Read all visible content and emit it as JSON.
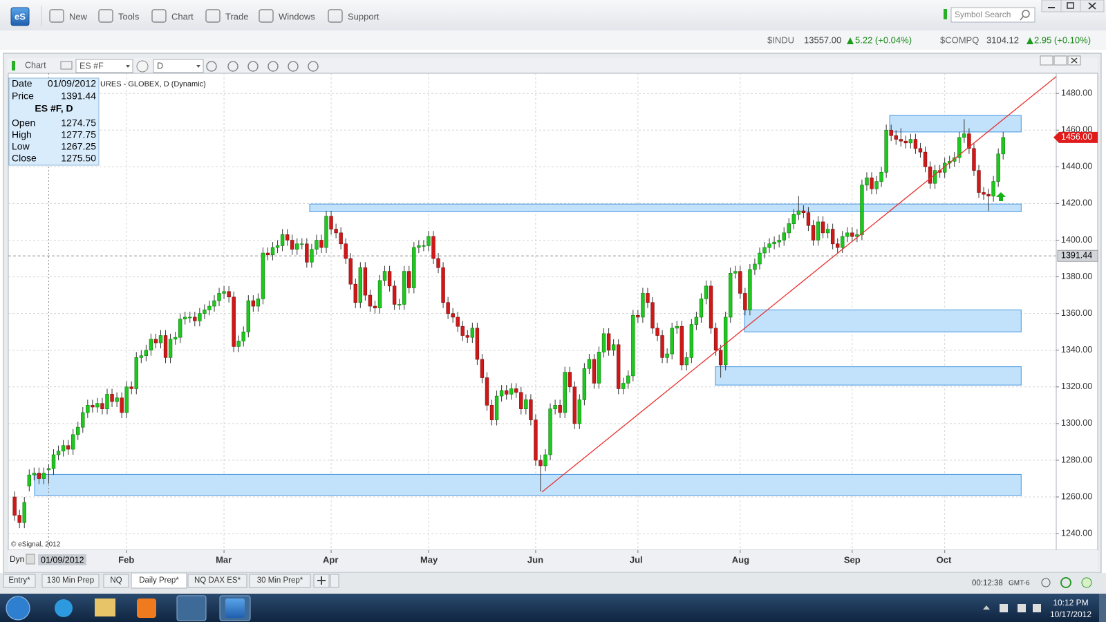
{
  "app": {
    "logo": "eS",
    "menu": [
      "New",
      "Tools",
      "Chart",
      "Trade",
      "Windows",
      "Support"
    ],
    "search_placeholder": "Symbol Search"
  },
  "tickers": [
    {
      "symbol": "$INDU",
      "last": "13557.00",
      "change": "5.22 (+0.04%)"
    },
    {
      "symbol": "$COMPQ",
      "last": "3104.12",
      "change": "2.95 (+0.10%)"
    }
  ],
  "chart_window": {
    "title": "Chart",
    "symbol": "ES #F",
    "interval": "D",
    "legend": "URES - GLOBEX, D (Dynamic)",
    "copyright": "© eSignal, 2012",
    "mode": "Dyn"
  },
  "data_box": {
    "date_label": "Date",
    "date": "01/09/2012",
    "price_label": "Price",
    "price": "1391.44",
    "header": "ES #F, D",
    "rows": [
      [
        "Open",
        "1274.75"
      ],
      [
        "High",
        "1277.75"
      ],
      [
        "Low",
        "1267.25"
      ],
      [
        "Close",
        "1275.50"
      ]
    ]
  },
  "tabs": [
    "Entry*",
    "130 Min Prep",
    "NQ",
    "Daily Prep*",
    "NQ DAX ES*",
    "30 Min Prep*"
  ],
  "status": {
    "timer": "00:12:38",
    "timezone": "GMT-6"
  },
  "taskbar": {
    "time": "10:12 PM",
    "date": "10/17/2012"
  },
  "chart_data": {
    "type": "candlestick",
    "up_color": "#1ec81e",
    "down_color": "#d01818",
    "grid": true,
    "xlim": [
      -1.3,
      213.9
    ],
    "ylim": [
      1231,
      1491
    ],
    "xticks": [
      {
        "value": 23,
        "label": "Feb"
      },
      {
        "value": 43,
        "label": "Mar"
      },
      {
        "value": 65,
        "label": "Apr"
      },
      {
        "value": 85,
        "label": "May"
      },
      {
        "value": 107,
        "label": "Jun"
      },
      {
        "value": 128,
        "label": "Jul"
      },
      {
        "value": 149,
        "label": "Aug"
      },
      {
        "value": 172,
        "label": "Sep"
      },
      {
        "value": 191,
        "label": "Oct"
      }
    ],
    "yticks": [
      {
        "value": 1240,
        "label": "1240.00"
      },
      {
        "value": 1260,
        "label": "1260.00"
      },
      {
        "value": 1280,
        "label": "1280.00"
      },
      {
        "value": 1300,
        "label": "1300.00"
      },
      {
        "value": 1320,
        "label": "1320.00"
      },
      {
        "value": 1340,
        "label": "1340.00"
      },
      {
        "value": 1360,
        "label": "1360.00"
      },
      {
        "value": 1380,
        "label": "1380.00"
      },
      {
        "value": 1400,
        "label": "1400.00"
      },
      {
        "value": 1420,
        "label": "1420.00"
      },
      {
        "value": 1440,
        "label": "1440.00"
      },
      {
        "value": 1460,
        "label": "1460.00"
      },
      {
        "value": 1480,
        "label": "1480.00"
      }
    ],
    "open": [
      1260,
      1250,
      1246,
      1266,
      1272,
      1273,
      1270,
      1274.75,
      1275.5,
      1283,
      1285,
      1288,
      1286,
      1294,
      1298,
      1306,
      1310,
      1309,
      1311,
      1308,
      1316,
      1312,
      1314,
      1306,
      1320,
      1319,
      1336,
      1337,
      1340,
      1346,
      1344,
      1348,
      1336,
      1346,
      1347,
      1357,
      1358,
      1358,
      1356,
      1360,
      1362,
      1364,
      1367,
      1371,
      1372,
      1369,
      1342,
      1345,
      1350,
      1367,
      1364,
      1368,
      1393,
      1392,
      1396,
      1397,
      1403,
      1400,
      1395,
      1398,
      1398,
      1388,
      1395,
      1400,
      1396,
      1413,
      1406,
      1404,
      1398,
      1390,
      1376,
      1366,
      1385,
      1370,
      1364,
      1363,
      1378,
      1383,
      1375,
      1365,
      1365,
      1383,
      1374,
      1396,
      1397,
      1397,
      1402,
      1390,
      1385,
      1366,
      1360,
      1358,
      1353,
      1348,
      1347,
      1352,
      1335,
      1325,
      1310,
      1302,
      1315,
      1318,
      1316,
      1319,
      1317,
      1308,
      1313,
      1302,
      1280,
      1277,
      1283,
      1308,
      1310,
      1306,
      1328,
      1320,
      1300,
      1313,
      1330,
      1335,
      1322,
      1339,
      1349,
      1340,
      1343,
      1319,
      1322,
      1326,
      1359,
      1358,
      1371,
      1366,
      1352,
      1348,
      1336,
      1338,
      1352,
      1353,
      1332,
      1336,
      1354,
      1358,
      1368,
      1375,
      1352,
      1340,
      1332,
      1358,
      1382,
      1383,
      1371,
      1362,
      1384,
      1387,
      1393,
      1396,
      1398,
      1399,
      1400,
      1404,
      1409,
      1414,
      1416,
      1415,
      1408,
      1400,
      1410,
      1404,
      1406,
      1398,
      1396,
      1402,
      1404,
      1402,
      1403,
      1430,
      1434,
      1428,
      1432,
      1437,
      1460,
      1457,
      1455,
      1454,
      1453,
      1455,
      1450,
      1448,
      1440,
      1431,
      1438,
      1437,
      1442,
      1443,
      1445,
      1456,
      1458,
      1450,
      1438,
      1426,
      1425,
      1424,
      1432,
      1447
    ],
    "high": [
      1263,
      1253,
      1260,
      1275,
      1276,
      1276,
      1276,
      1277.75,
      1286,
      1288,
      1291,
      1291,
      1297,
      1301,
      1309,
      1313,
      1313,
      1314,
      1314,
      1319,
      1319,
      1317,
      1317,
      1323,
      1323,
      1339,
      1340,
      1343,
      1349,
      1349,
      1351,
      1351,
      1349,
      1350,
      1360,
      1361,
      1361,
      1361,
      1363,
      1365,
      1367,
      1370,
      1374,
      1375,
      1375,
      1372,
      1348,
      1353,
      1370,
      1370,
      1371,
      1396,
      1396,
      1399,
      1400,
      1406,
      1406,
      1403,
      1401,
      1401,
      1401,
      1398,
      1403,
      1403,
      1416,
      1416,
      1409,
      1407,
      1401,
      1393,
      1379,
      1388,
      1388,
      1373,
      1367,
      1381,
      1386,
      1386,
      1378,
      1368,
      1386,
      1386,
      1399,
      1400,
      1400,
      1405,
      1405,
      1393,
      1388,
      1369,
      1363,
      1361,
      1356,
      1351,
      1355,
      1355,
      1338,
      1328,
      1313,
      1318,
      1321,
      1321,
      1322,
      1322,
      1320,
      1316,
      1316,
      1305,
      1283,
      1286,
      1311,
      1313,
      1313,
      1331,
      1331,
      1323,
      1316,
      1333,
      1338,
      1338,
      1342,
      1352,
      1352,
      1346,
      1346,
      1325,
      1329,
      1362,
      1362,
      1374,
      1374,
      1369,
      1355,
      1351,
      1341,
      1355,
      1356,
      1356,
      1339,
      1357,
      1361,
      1371,
      1378,
      1378,
      1355,
      1343,
      1361,
      1385,
      1386,
      1386,
      1374,
      1387,
      1390,
      1396,
      1399,
      1401,
      1402,
      1403,
      1407,
      1412,
      1417,
      1424,
      1419,
      1418,
      1411,
      1413,
      1413,
      1409,
      1409,
      1401,
      1405,
      1407,
      1407,
      1406,
      1433,
      1437,
      1437,
      1435,
      1440,
      1463,
      1463,
      1460,
      1461,
      1457,
      1458,
      1458,
      1453,
      1451,
      1443,
      1441,
      1441,
      1445,
      1446,
      1448,
      1459,
      1466,
      1461,
      1453,
      1441,
      1429,
      1428,
      1435,
      1450,
      1459
    ],
    "low": [
      1247,
      1243,
      1243,
      1263,
      1269,
      1267,
      1267,
      1267.25,
      1272,
      1280,
      1282,
      1283,
      1283,
      1291,
      1295,
      1303,
      1306,
      1306,
      1305,
      1305,
      1309,
      1309,
      1303,
      1303,
      1316,
      1316,
      1333,
      1334,
      1337,
      1341,
      1341,
      1333,
      1333,
      1343,
      1344,
      1354,
      1355,
      1353,
      1353,
      1357,
      1359,
      1361,
      1364,
      1368,
      1366,
      1339,
      1339,
      1342,
      1347,
      1361,
      1361,
      1365,
      1389,
      1389,
      1393,
      1394,
      1397,
      1392,
      1392,
      1395,
      1385,
      1385,
      1392,
      1393,
      1393,
      1403,
      1401,
      1395,
      1387,
      1373,
      1363,
      1363,
      1367,
      1361,
      1360,
      1360,
      1375,
      1372,
      1362,
      1362,
      1362,
      1371,
      1371,
      1393,
      1394,
      1394,
      1387,
      1382,
      1363,
      1357,
      1355,
      1350,
      1345,
      1344,
      1344,
      1332,
      1322,
      1307,
      1299,
      1299,
      1312,
      1313,
      1313,
      1314,
      1305,
      1305,
      1299,
      1277,
      1263,
      1274,
      1280,
      1305,
      1303,
      1303,
      1317,
      1297,
      1297,
      1310,
      1327,
      1319,
      1319,
      1336,
      1337,
      1337,
      1316,
      1316,
      1319,
      1323,
      1355,
      1355,
      1363,
      1349,
      1345,
      1333,
      1333,
      1335,
      1349,
      1329,
      1329,
      1333,
      1351,
      1355,
      1365,
      1349,
      1337,
      1325,
      1329,
      1355,
      1379,
      1368,
      1359,
      1359,
      1381,
      1384,
      1390,
      1393,
      1395,
      1396,
      1397,
      1401,
      1406,
      1411,
      1412,
      1405,
      1397,
      1397,
      1401,
      1401,
      1395,
      1393,
      1393,
      1399,
      1399,
      1399,
      1400,
      1427,
      1425,
      1425,
      1429,
      1434,
      1454,
      1452,
      1451,
      1450,
      1450,
      1447,
      1445,
      1437,
      1428,
      1428,
      1434,
      1434,
      1439,
      1440,
      1442,
      1453,
      1447,
      1435,
      1423,
      1422,
      1416,
      1421,
      1429,
      1444
    ],
    "close": [
      1250,
      1246,
      1257,
      1272,
      1273,
      1270,
      1273,
      1275.5,
      1283,
      1285,
      1288,
      1286,
      1294,
      1298,
      1306,
      1310,
      1309,
      1311,
      1308,
      1316,
      1312,
      1314,
      1306,
      1320,
      1319,
      1336,
      1337,
      1340,
      1346,
      1344,
      1348,
      1336,
      1346,
      1347,
      1357,
      1358,
      1358,
      1356,
      1360,
      1362,
      1364,
      1367,
      1371,
      1372,
      1369,
      1342,
      1345,
      1350,
      1367,
      1364,
      1368,
      1393,
      1392,
      1396,
      1397,
      1403,
      1400,
      1395,
      1398,
      1398,
      1388,
      1395,
      1400,
      1396,
      1413,
      1406,
      1404,
      1398,
      1390,
      1376,
      1366,
      1385,
      1370,
      1364,
      1363,
      1378,
      1383,
      1375,
      1365,
      1365,
      1383,
      1374,
      1396,
      1397,
      1397,
      1402,
      1390,
      1385,
      1366,
      1360,
      1358,
      1353,
      1348,
      1347,
      1352,
      1335,
      1325,
      1310,
      1302,
      1315,
      1318,
      1316,
      1319,
      1317,
      1308,
      1313,
      1302,
      1280,
      1277,
      1283,
      1308,
      1310,
      1306,
      1328,
      1320,
      1300,
      1313,
      1330,
      1335,
      1322,
      1339,
      1349,
      1340,
      1343,
      1319,
      1322,
      1326,
      1359,
      1358,
      1371,
      1366,
      1352,
      1348,
      1336,
      1338,
      1352,
      1353,
      1332,
      1336,
      1354,
      1358,
      1368,
      1375,
      1352,
      1340,
      1332,
      1358,
      1382,
      1383,
      1371,
      1362,
      1384,
      1387,
      1393,
      1396,
      1398,
      1399,
      1400,
      1404,
      1409,
      1414,
      1416,
      1415,
      1408,
      1400,
      1410,
      1404,
      1406,
      1398,
      1396,
      1402,
      1404,
      1402,
      1403,
      1430,
      1434,
      1428,
      1432,
      1437,
      1460,
      1457,
      1455,
      1454,
      1453,
      1455,
      1450,
      1448,
      1440,
      1431,
      1438,
      1437,
      1442,
      1443,
      1445,
      1456,
      1458,
      1450,
      1438,
      1426,
      1425,
      1424,
      1432,
      1447,
      1456
    ],
    "zones": [
      {
        "from": 4.1,
        "to": 206.7,
        "low": 1260.8,
        "high": 1272.3
      },
      {
        "from": 60.6,
        "to": 206.7,
        "low": 1415.5,
        "high": 1419.7
      },
      {
        "from": 179.7,
        "to": 206.7,
        "low": 1459,
        "high": 1468
      },
      {
        "from": 149.9,
        "to": 206.7,
        "low": 1350,
        "high": 1362
      },
      {
        "from": 143.9,
        "to": 206.7,
        "low": 1321,
        "high": 1331
      }
    ],
    "zone_color": "#bfe1fb",
    "zone_border": "#3c90e0",
    "trendline": {
      "x": [
        108.3,
        213.9
      ],
      "y": [
        1262.7,
        1489.2
      ],
      "color": "#e8302e"
    },
    "crosshair": {
      "index": 7,
      "price": 1391.44,
      "date": "01/09/2012"
    },
    "last_price": {
      "value": 1456,
      "label": "1456.00",
      "color": "#e01b1b"
    }
  }
}
